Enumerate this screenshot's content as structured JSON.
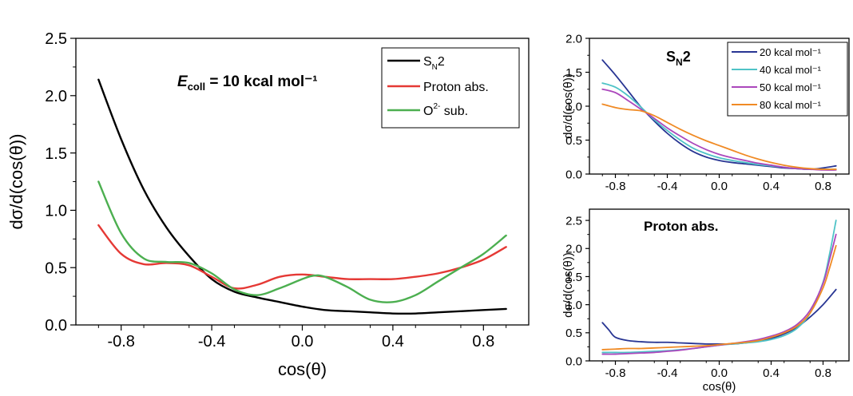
{
  "chart_data": [
    {
      "type": "line",
      "title": "",
      "annotation": {
        "E": "E",
        "sub": "coll",
        "rest": " = 10 kcal mol⁻¹"
      },
      "xlabel": "cos(θ)",
      "ylabel": "dσ/d(cos(θ))",
      "xlim": [
        -1.0,
        1.0
      ],
      "ylim": [
        0.0,
        2.5
      ],
      "xticks": [
        "-0.8",
        "-0.4",
        "0.0",
        "0.4",
        "0.8"
      ],
      "yticks": [
        "0.0",
        "0.5",
        "1.0",
        "1.5",
        "2.0",
        "2.5"
      ],
      "legend_position": "top-right",
      "series": [
        {
          "name": "S_N2",
          "name_main": "S",
          "name_sub": "N",
          "name_rest": "2",
          "color": "#000000",
          "x": [
            -0.9,
            -0.8,
            -0.7,
            -0.6,
            -0.5,
            -0.4,
            -0.3,
            -0.2,
            -0.1,
            0.0,
            0.1,
            0.2,
            0.3,
            0.4,
            0.5,
            0.6,
            0.7,
            0.8,
            0.9
          ],
          "y": [
            2.14,
            1.62,
            1.18,
            0.85,
            0.6,
            0.4,
            0.29,
            0.24,
            0.2,
            0.16,
            0.13,
            0.12,
            0.11,
            0.1,
            0.1,
            0.11,
            0.12,
            0.13,
            0.14
          ]
        },
        {
          "name": "Proton abs.",
          "color": "#e53935",
          "x": [
            -0.9,
            -0.8,
            -0.7,
            -0.6,
            -0.5,
            -0.4,
            -0.3,
            -0.2,
            -0.1,
            0.0,
            0.1,
            0.2,
            0.3,
            0.4,
            0.5,
            0.6,
            0.7,
            0.8,
            0.9
          ],
          "y": [
            0.87,
            0.62,
            0.53,
            0.54,
            0.52,
            0.42,
            0.32,
            0.35,
            0.42,
            0.44,
            0.42,
            0.4,
            0.4,
            0.4,
            0.42,
            0.45,
            0.5,
            0.57,
            0.68
          ]
        },
        {
          "name": "O2- sub.",
          "name_main": "O",
          "name_sup": "2-",
          "name_rest": " sub.",
          "color": "#4caf50",
          "x": [
            -0.9,
            -0.8,
            -0.7,
            -0.6,
            -0.5,
            -0.4,
            -0.3,
            -0.2,
            -0.1,
            0.0,
            0.05,
            0.1,
            0.2,
            0.3,
            0.4,
            0.5,
            0.6,
            0.7,
            0.8,
            0.9
          ],
          "y": [
            1.25,
            0.8,
            0.58,
            0.55,
            0.54,
            0.45,
            0.31,
            0.26,
            0.32,
            0.4,
            0.43,
            0.42,
            0.33,
            0.22,
            0.2,
            0.26,
            0.38,
            0.5,
            0.62,
            0.78
          ]
        }
      ]
    },
    {
      "type": "line",
      "title": "",
      "annotation": {
        "main": "S",
        "sub": "N",
        "rest": "2"
      },
      "xlabel": "",
      "ylabel": "dσ/d(cos(θ))",
      "xlim": [
        -1.0,
        1.0
      ],
      "ylim": [
        0.0,
        2.0
      ],
      "xticks": [
        "-0.8",
        "-0.4",
        "0.0",
        "0.4",
        "0.8"
      ],
      "yticks": [
        "0.0",
        "0.5",
        "1.0",
        "1.5",
        "2.0"
      ],
      "legend_position": "top-right",
      "series": [
        {
          "name": "20 kcal mol⁻¹",
          "color": "#283593",
          "x": [
            -0.9,
            -0.8,
            -0.7,
            -0.6,
            -0.5,
            -0.4,
            -0.3,
            -0.2,
            -0.1,
            0.0,
            0.1,
            0.2,
            0.3,
            0.4,
            0.5,
            0.6,
            0.7,
            0.8,
            0.9
          ],
          "y": [
            1.68,
            1.46,
            1.22,
            0.98,
            0.78,
            0.6,
            0.45,
            0.33,
            0.25,
            0.2,
            0.17,
            0.15,
            0.13,
            0.11,
            0.09,
            0.08,
            0.07,
            0.09,
            0.12
          ]
        },
        {
          "name": "40 kcal mol⁻¹",
          "color": "#4fc3c7",
          "x": [
            -0.9,
            -0.8,
            -0.7,
            -0.6,
            -0.5,
            -0.4,
            -0.3,
            -0.2,
            -0.1,
            0.0,
            0.1,
            0.2,
            0.3,
            0.4,
            0.5,
            0.6,
            0.7,
            0.8,
            0.9
          ],
          "y": [
            1.34,
            1.28,
            1.15,
            0.98,
            0.8,
            0.64,
            0.5,
            0.38,
            0.3,
            0.24,
            0.2,
            0.17,
            0.14,
            0.12,
            0.1,
            0.08,
            0.07,
            0.07,
            0.07
          ]
        },
        {
          "name": "50 kcal mol⁻¹",
          "color": "#ab47bc",
          "x": [
            -0.9,
            -0.8,
            -0.7,
            -0.6,
            -0.5,
            -0.4,
            -0.3,
            -0.2,
            -0.1,
            0.0,
            0.1,
            0.2,
            0.3,
            0.4,
            0.5,
            0.6,
            0.7,
            0.8,
            0.9
          ],
          "y": [
            1.25,
            1.2,
            1.08,
            0.95,
            0.82,
            0.68,
            0.56,
            0.45,
            0.36,
            0.29,
            0.24,
            0.2,
            0.16,
            0.13,
            0.1,
            0.08,
            0.07,
            0.06,
            0.06
          ]
        },
        {
          "name": "80 kcal mol⁻¹",
          "color": "#f08a24",
          "x": [
            -0.9,
            -0.8,
            -0.7,
            -0.6,
            -0.5,
            -0.4,
            -0.3,
            -0.2,
            -0.1,
            0.0,
            0.1,
            0.2,
            0.3,
            0.4,
            0.5,
            0.6,
            0.7,
            0.8,
            0.9
          ],
          "y": [
            1.03,
            0.98,
            0.95,
            0.93,
            0.86,
            0.76,
            0.66,
            0.57,
            0.49,
            0.42,
            0.35,
            0.28,
            0.22,
            0.17,
            0.13,
            0.1,
            0.08,
            0.07,
            0.07
          ]
        }
      ]
    },
    {
      "type": "line",
      "title": "",
      "annotation": {
        "text": "Proton abs."
      },
      "xlabel": "cos(θ)",
      "ylabel": "dσ/d(cos(θ))",
      "xlim": [
        -1.0,
        1.0
      ],
      "ylim": [
        0.0,
        2.7
      ],
      "xticks": [
        "-0.8",
        "-0.4",
        "0.0",
        "0.4",
        "0.8"
      ],
      "yticks": [
        "0.0",
        "0.5",
        "1.0",
        "1.5",
        "2.0",
        "2.5"
      ],
      "legend_position": "none",
      "series": [
        {
          "name": "",
          "color": "#283593",
          "x": [
            -0.9,
            -0.85,
            -0.8,
            -0.7,
            -0.6,
            -0.5,
            -0.4,
            -0.3,
            -0.2,
            -0.1,
            0.0,
            0.1,
            0.2,
            0.3,
            0.4,
            0.5,
            0.6,
            0.7,
            0.8,
            0.9
          ],
          "y": [
            0.68,
            0.55,
            0.42,
            0.36,
            0.34,
            0.33,
            0.33,
            0.32,
            0.31,
            0.3,
            0.3,
            0.3,
            0.32,
            0.35,
            0.4,
            0.48,
            0.6,
            0.78,
            1.0,
            1.27
          ]
        },
        {
          "name": "",
          "color": "#4fc3c7",
          "x": [
            -0.9,
            -0.8,
            -0.7,
            -0.6,
            -0.5,
            -0.4,
            -0.3,
            -0.2,
            -0.1,
            0.0,
            0.1,
            0.2,
            0.3,
            0.4,
            0.5,
            0.6,
            0.7,
            0.8,
            0.85,
            0.9
          ],
          "y": [
            0.15,
            0.15,
            0.15,
            0.16,
            0.17,
            0.18,
            0.2,
            0.22,
            0.25,
            0.28,
            0.3,
            0.32,
            0.34,
            0.38,
            0.45,
            0.58,
            0.85,
            1.4,
            1.9,
            2.5
          ]
        },
        {
          "name": "",
          "color": "#ab47bc",
          "x": [
            -0.9,
            -0.8,
            -0.7,
            -0.6,
            -0.5,
            -0.4,
            -0.3,
            -0.2,
            -0.1,
            0.0,
            0.1,
            0.2,
            0.3,
            0.4,
            0.5,
            0.6,
            0.7,
            0.8,
            0.85,
            0.9
          ],
          "y": [
            0.12,
            0.12,
            0.13,
            0.14,
            0.15,
            0.17,
            0.19,
            0.22,
            0.25,
            0.28,
            0.31,
            0.34,
            0.38,
            0.44,
            0.52,
            0.65,
            0.9,
            1.38,
            1.8,
            2.25
          ]
        },
        {
          "name": "",
          "color": "#f08a24",
          "x": [
            -0.9,
            -0.8,
            -0.7,
            -0.6,
            -0.5,
            -0.4,
            -0.3,
            -0.2,
            -0.1,
            0.0,
            0.1,
            0.2,
            0.3,
            0.4,
            0.5,
            0.6,
            0.7,
            0.8,
            0.85,
            0.9
          ],
          "y": [
            0.2,
            0.21,
            0.22,
            0.22,
            0.23,
            0.24,
            0.25,
            0.26,
            0.27,
            0.29,
            0.31,
            0.33,
            0.36,
            0.42,
            0.5,
            0.62,
            0.85,
            1.3,
            1.65,
            2.05
          ]
        }
      ]
    }
  ]
}
